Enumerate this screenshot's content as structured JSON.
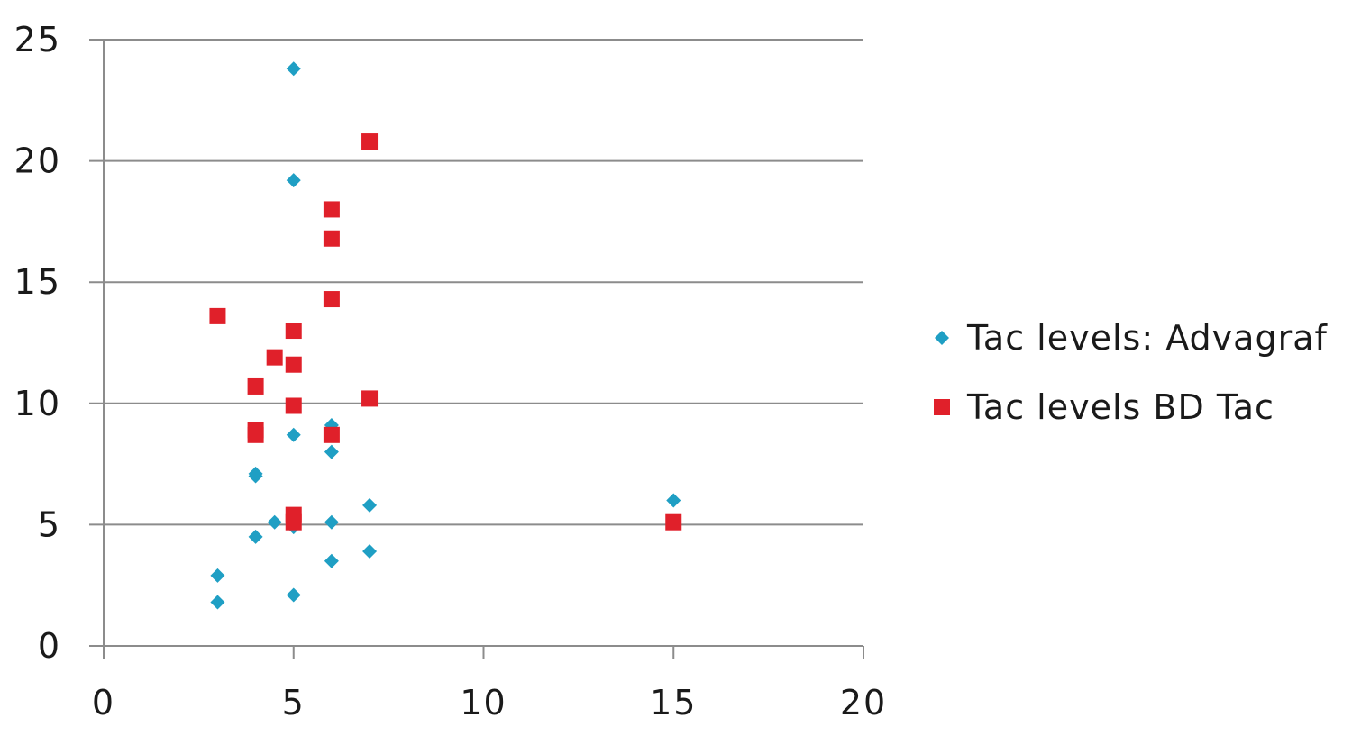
{
  "chart_data": {
    "type": "scatter",
    "title": "",
    "xlabel": "",
    "ylabel": "",
    "xlim": [
      0,
      20
    ],
    "ylim": [
      0,
      25
    ],
    "x_ticks": [
      "0",
      "5",
      "10",
      "15",
      "20"
    ],
    "y_ticks": [
      "0",
      "5",
      "10",
      "15",
      "20",
      "25"
    ],
    "grid": "horizontal",
    "legend_position": "right",
    "series": [
      {
        "name": "Tac levels: Advagraf",
        "marker": "diamond",
        "color": "#1f9fc4",
        "points": [
          {
            "x": 5,
            "y": 23.8
          },
          {
            "x": 5,
            "y": 19.2
          },
          {
            "x": 6,
            "y": 9.1
          },
          {
            "x": 5,
            "y": 8.7
          },
          {
            "x": 6,
            "y": 8.0
          },
          {
            "x": 4,
            "y": 7.1
          },
          {
            "x": 4,
            "y": 7.0
          },
          {
            "x": 15,
            "y": 6.0
          },
          {
            "x": 7,
            "y": 5.8
          },
          {
            "x": 4.5,
            "y": 5.1
          },
          {
            "x": 6,
            "y": 5.1
          },
          {
            "x": 5,
            "y": 4.9
          },
          {
            "x": 4,
            "y": 4.5
          },
          {
            "x": 7,
            "y": 3.9
          },
          {
            "x": 6,
            "y": 3.5
          },
          {
            "x": 3,
            "y": 2.9
          },
          {
            "x": 5,
            "y": 2.1
          },
          {
            "x": 3,
            "y": 1.8
          }
        ]
      },
      {
        "name": "Tac levels BD Tac",
        "marker": "square",
        "color": "#e0202a",
        "points": [
          {
            "x": 7,
            "y": 20.8
          },
          {
            "x": 6,
            "y": 18.0
          },
          {
            "x": 6,
            "y": 16.8
          },
          {
            "x": 6,
            "y": 14.3
          },
          {
            "x": 3,
            "y": 13.6
          },
          {
            "x": 5,
            "y": 13.0
          },
          {
            "x": 4.5,
            "y": 11.9
          },
          {
            "x": 5,
            "y": 11.6
          },
          {
            "x": 4,
            "y": 10.7
          },
          {
            "x": 7,
            "y": 10.2
          },
          {
            "x": 5,
            "y": 9.9
          },
          {
            "x": 4,
            "y": 8.9
          },
          {
            "x": 4,
            "y": 8.7
          },
          {
            "x": 6,
            "y": 8.7
          },
          {
            "x": 5,
            "y": 5.4
          },
          {
            "x": 5,
            "y": 5.1
          },
          {
            "x": 15,
            "y": 5.1
          }
        ]
      }
    ]
  }
}
